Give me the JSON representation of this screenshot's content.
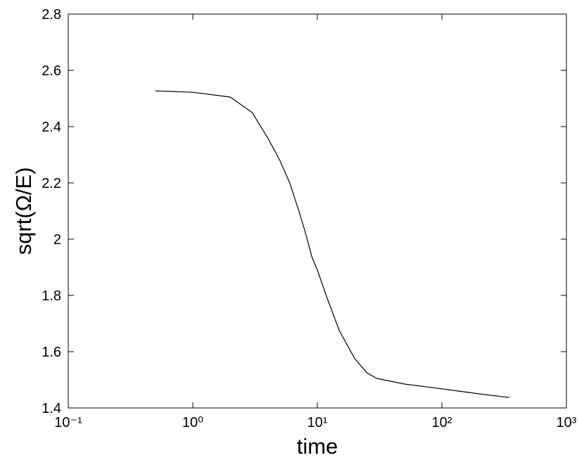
{
  "chart_data": {
    "type": "line",
    "x_label": "time",
    "y_label": "sqrt(Ω/E)",
    "xscale": "log",
    "xlim": [
      0.1,
      1000
    ],
    "ylim": [
      1.4,
      2.8
    ],
    "xticks": [
      {
        "value": 0.1,
        "label": "10⁻¹"
      },
      {
        "value": 1,
        "label": "10⁰"
      },
      {
        "value": 10,
        "label": "10¹"
      },
      {
        "value": 100,
        "label": "10²"
      },
      {
        "value": 1000,
        "label": "10³"
      }
    ],
    "yticks": [
      1.4,
      1.6,
      1.8,
      2,
      2.2,
      2.4,
      2.6,
      2.8
    ],
    "grid": false,
    "series": [
      {
        "color": "#000000",
        "x": [
          0.5,
          1,
          2,
          3,
          4,
          5,
          6,
          7,
          8,
          9,
          10,
          12,
          15,
          20,
          25,
          30,
          50,
          100,
          200,
          350
        ],
        "values": [
          2.527,
          2.522,
          2.505,
          2.45,
          2.36,
          2.28,
          2.2,
          2.11,
          2.025,
          1.94,
          1.89,
          1.79,
          1.675,
          1.575,
          1.525,
          1.505,
          1.485,
          1.468,
          1.45,
          1.437
        ]
      }
    ]
  }
}
